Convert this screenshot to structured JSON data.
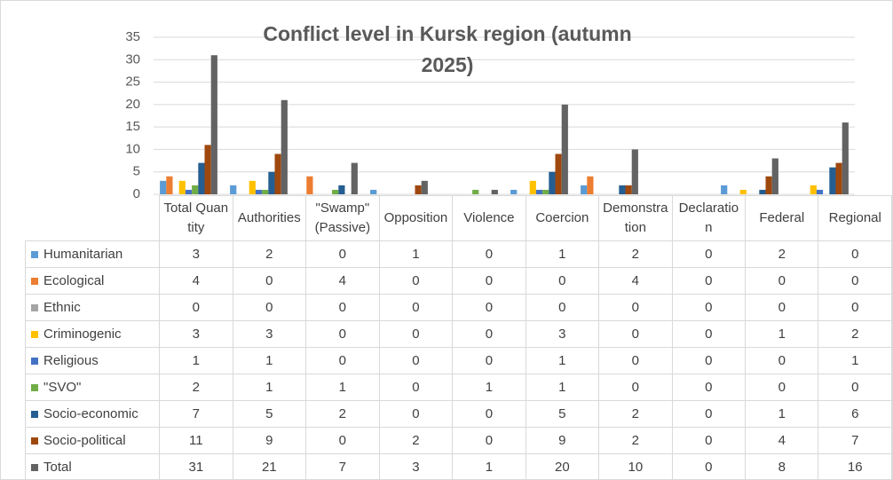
{
  "chart_data": {
    "type": "bar",
    "title": "Conflict level in Kursk region (autumn 2025)",
    "categories": [
      "Total Quantity",
      "Authorities",
      "\"Swamp\" (Passive)",
      "Opposition",
      "Violence",
      "Coercion",
      "Demonstration",
      "Declaration",
      "Federal",
      "Regional"
    ],
    "series": [
      {
        "name": "Humanitarian",
        "color": "#5b9bd5",
        "values": [
          3,
          2,
          0,
          1,
          0,
          1,
          2,
          0,
          2,
          0
        ]
      },
      {
        "name": "Ecological",
        "color": "#ed7d31",
        "values": [
          4,
          0,
          4,
          0,
          0,
          0,
          4,
          0,
          0,
          0
        ]
      },
      {
        "name": "Ethnic",
        "color": "#a5a5a5",
        "values": [
          0,
          0,
          0,
          0,
          0,
          0,
          0,
          0,
          0,
          0
        ]
      },
      {
        "name": "Criminogenic",
        "color": "#ffc000",
        "values": [
          3,
          3,
          0,
          0,
          0,
          3,
          0,
          0,
          1,
          2
        ]
      },
      {
        "name": "Religious",
        "color": "#4472c4",
        "values": [
          1,
          1,
          0,
          0,
          0,
          1,
          0,
          0,
          0,
          1
        ]
      },
      {
        "name": "\"SVO\"",
        "color": "#70ad47",
        "values": [
          2,
          1,
          1,
          0,
          1,
          1,
          0,
          0,
          0,
          0
        ]
      },
      {
        "name": "Socio-economic",
        "color": "#255e91",
        "values": [
          7,
          5,
          2,
          0,
          0,
          5,
          2,
          0,
          1,
          6
        ]
      },
      {
        "name": "Socio-political",
        "color": "#9e480e",
        "values": [
          11,
          9,
          0,
          2,
          0,
          9,
          2,
          0,
          4,
          7
        ]
      },
      {
        "name": "Total",
        "color": "#636363",
        "values": [
          31,
          21,
          7,
          3,
          1,
          20,
          10,
          0,
          8,
          16
        ]
      }
    ],
    "ylim": [
      0,
      35
    ],
    "yticks": [
      0,
      5,
      10,
      15,
      20,
      25,
      30,
      35
    ],
    "grid": true
  }
}
